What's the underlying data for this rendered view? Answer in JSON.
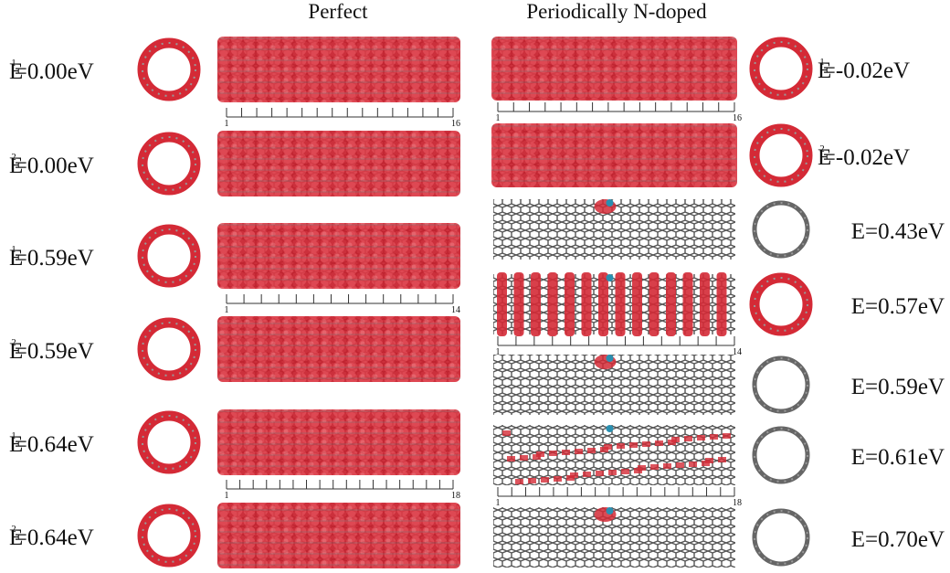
{
  "headers": {
    "perfect": "Perfect",
    "doped": "Periodically N-doped"
  },
  "perfect_rows": [
    {
      "symbol": "E",
      "index": "1",
      "energy": "=0.00eV"
    },
    {
      "symbol": "E",
      "index": "2",
      "energy": "=0.00eV"
    },
    {
      "symbol": "E",
      "index": "1",
      "energy": "=0.59eV"
    },
    {
      "symbol": "E",
      "index": "2",
      "energy": "=0.59eV"
    },
    {
      "symbol": "E",
      "index": "1",
      "energy": "=0.64eV"
    },
    {
      "symbol": "E",
      "index": "2",
      "energy": "=0.64eV"
    }
  ],
  "doped_rows": [
    {
      "symbol": "E",
      "index": "1",
      "energy": "=-0.02eV"
    },
    {
      "symbol": "E",
      "index": "2",
      "energy": "=-0.02eV"
    },
    {
      "symbol": "E",
      "energy": "=0.43eV"
    },
    {
      "symbol": "E",
      "energy": "=0.57eV"
    },
    {
      "symbol": "E",
      "energy": "=0.59eV"
    },
    {
      "symbol": "E",
      "energy": "=0.61eV"
    },
    {
      "symbol": "E",
      "energy": "=0.70eV"
    }
  ],
  "perfect_rulers": [
    {
      "start": "1",
      "end": "16"
    },
    {
      "start": "1",
      "end": "14"
    },
    {
      "start": "1",
      "end": "18"
    }
  ],
  "doped_rulers": [
    {
      "start": "1",
      "end": "16"
    },
    {
      "start": "1",
      "end": "14"
    },
    {
      "start": "1",
      "end": "18"
    }
  ]
}
